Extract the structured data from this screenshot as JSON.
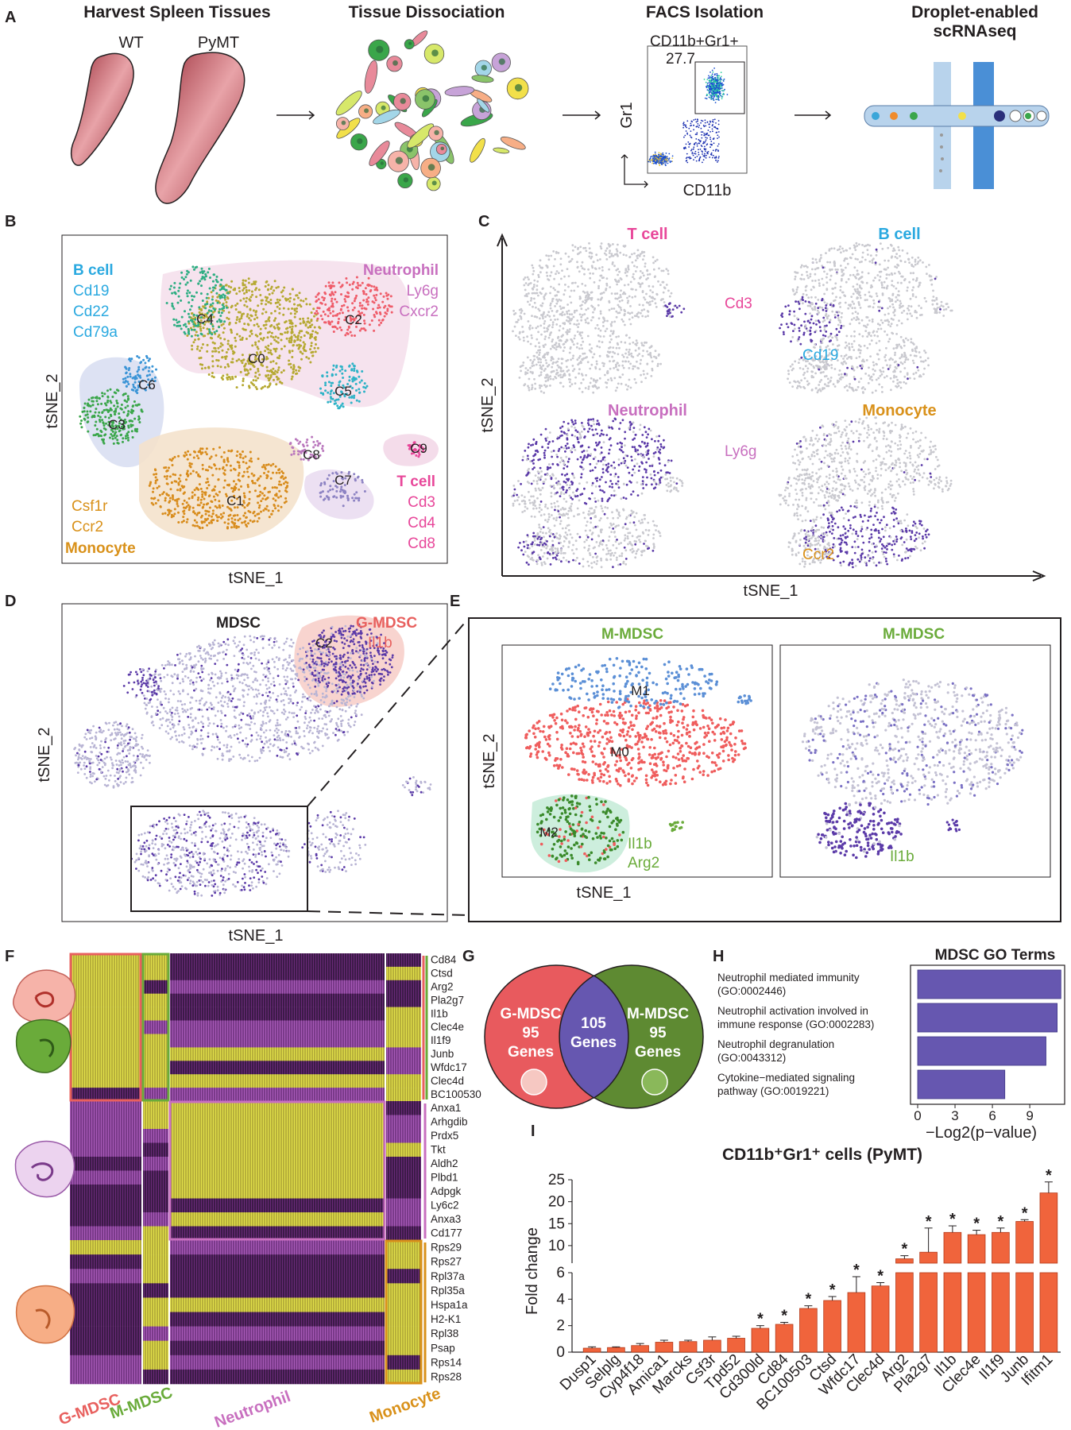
{
  "colors": {
    "bcell": "#2aa9e0",
    "neutrophil": "#c86fbf",
    "tcell": "#e8479a",
    "monocyte": "#d9911a",
    "gmdsc": "#e8605e",
    "mmdsc": "#6aab3a",
    "purple": "#5b3aa8",
    "grey": "#c9c9cf",
    "bar": "#f0643c",
    "gobar": "#6657b0",
    "c0": "#b6a932",
    "c1": "#d88c1c",
    "c2": "#ef5d6a",
    "c3": "#3aa64a",
    "c4": "#2fae83",
    "c5": "#2fb3c7",
    "c6": "#3a94d6",
    "c7": "#8d83c3",
    "c8": "#ba78bd",
    "c9": "#e8479a"
  },
  "panelA": {
    "label": "A",
    "step1_title": "Harvest Spleen Tissues",
    "wt": "WT",
    "pymt": "PyMT",
    "step2_title": "Tissue Dissociation",
    "step3_title": "FACS Isolation",
    "gate_name": "CD11b+Gr1+",
    "gate_pct": "27.7",
    "y_axis": "Gr1",
    "x_axis": "CD11b",
    "step4_title_line1": "Droplet-enabled",
    "step4_title_line2": "scRNAseq"
  },
  "panelB": {
    "label": "B",
    "x_axis": "tSNE_1",
    "y_axis": "tSNE_2",
    "clusters": [
      "C0",
      "C1",
      "C2",
      "C3",
      "C4",
      "C5",
      "C6",
      "C7",
      "C8",
      "C9"
    ],
    "bcell": {
      "name": "B cell",
      "genes": [
        "Cd19",
        "Cd22",
        "Cd79a"
      ]
    },
    "neutrophil": {
      "name": "Neutrophil",
      "genes": [
        "Ly6g",
        "Cxcr2"
      ]
    },
    "tcell": {
      "name": "T cell",
      "genes": [
        "Cd3",
        "Cd4",
        "Cd8"
      ]
    },
    "monocyte": {
      "name": "Monocyte",
      "genes": [
        "Csf1r",
        "Ccr2"
      ]
    }
  },
  "panelC": {
    "label": "C",
    "x_axis": "tSNE_1",
    "y_axis": "tSNE_2",
    "tcell": {
      "title": "T cell",
      "marker": "Cd3"
    },
    "bcell": {
      "title": "B cell",
      "marker": "Cd19"
    },
    "neutrophil": {
      "title": "Neutrophil",
      "marker": "Ly6g"
    },
    "monocyte": {
      "title": "Monocyte",
      "marker": "Ccr2"
    }
  },
  "panelD": {
    "label": "D",
    "title": "MDSC",
    "gmdsc": "G-MDSC",
    "gmdsc_gene": "Il1b",
    "cluster": "C2",
    "x_axis": "tSNE_1",
    "y_axis": "tSNE_2"
  },
  "panelE": {
    "label": "E",
    "title_left": "M-MDSC",
    "title_right": "M-MDSC",
    "clusters": [
      "M0",
      "M1",
      "M2"
    ],
    "genes": [
      "Il1b",
      "Arg2"
    ],
    "right_gene": "Il1b",
    "x_axis": "tSNE_1",
    "y_axis": "tSNE_2"
  },
  "panelF": {
    "label": "F",
    "group1_genes": [
      "Cd84",
      "Ctsd",
      "Arg2",
      "Pla2g7",
      "Il1b",
      "Clec4e",
      "Il1f9",
      "Junb",
      "Wfdc17",
      "Clec4d",
      "BC100530"
    ],
    "group2_genes": [
      "Anxa1",
      "Arhgdib",
      "Prdx5",
      "Tkt",
      "Aldh2",
      "Plbd1",
      "Adpgk",
      "Ly6c2",
      "Anxa3",
      "Cd177"
    ],
    "group3_genes": [
      "Rps29",
      "Rps27",
      "Rpl37a",
      "Rpl35a",
      "Hspa1a",
      "H2-K1",
      "Rpl38",
      "Psap",
      "Rps14",
      "Rps28"
    ],
    "columns": [
      "G-MDSC",
      "M-MDSC",
      "Neutrophil",
      "Monocyte"
    ]
  },
  "panelG": {
    "label": "G",
    "left": {
      "name": "G-MDSC",
      "count": "95",
      "unit": "Genes"
    },
    "overlap": {
      "count": "105",
      "unit": "Genes"
    },
    "right": {
      "name": "M-MDSC",
      "count": "95",
      "unit": "Genes"
    }
  },
  "panelH": {
    "label": "H"
  },
  "panelI": {
    "label": "I"
  },
  "chart_data": [
    {
      "type": "bar",
      "title": "MDSC GO Terms",
      "categories": [
        [
          "Neutrophil mediated immunity",
          "(GO:0002446)"
        ],
        [
          "Neutrophil activation involved in",
          "immune response (GO:0002283)"
        ],
        [
          "Neutrophil degranulation",
          "(GO:0043312)"
        ],
        [
          "Cytokine−mediated signaling",
          "pathway (GO:0019221)"
        ]
      ],
      "values": [
        11.5,
        11.2,
        10.3,
        7.0
      ],
      "xlabel": "−Log2(p−value)",
      "xlim": [
        0,
        11.8
      ],
      "ticks": [
        "0",
        "3",
        "6",
        "9"
      ]
    },
    {
      "type": "bar",
      "title": "CD11b⁺Gr1⁺ cells (PyMT)",
      "ylabel": "Fold change",
      "categories": [
        "Dusp1",
        "Selplg",
        "Cyp4f18",
        "Amica1",
        "Marcks",
        "Csf3r",
        "Tpd52",
        "Cd300ld",
        "Cd84",
        "BC100503",
        "Ctsd",
        "Wfdc17",
        "Clec4d",
        "Arg2",
        "Pla2g7",
        "Il1b",
        "Clec4e",
        "Il1f9",
        "Junb",
        "Ifitm1"
      ],
      "values": [
        0.3,
        0.35,
        0.5,
        0.75,
        0.8,
        0.9,
        1.05,
        1.8,
        2.1,
        3.3,
        3.9,
        4.5,
        5.0,
        7.0,
        8.5,
        13.0,
        12.5,
        13.0,
        15.5,
        22.0
      ],
      "errors": [
        0.1,
        0.05,
        0.15,
        0.15,
        0.1,
        0.25,
        0.15,
        0.2,
        0.15,
        0.2,
        0.3,
        1.2,
        0.25,
        0.7,
        5.5,
        1.5,
        1.0,
        1.0,
        0.4,
        2.5
      ],
      "significant": [
        false,
        false,
        false,
        false,
        false,
        false,
        false,
        true,
        true,
        true,
        true,
        true,
        true,
        true,
        true,
        true,
        true,
        true,
        true,
        true
      ],
      "star": "*",
      "ylim_lower": [
        0,
        6
      ],
      "ylim_upper": [
        6,
        25
      ],
      "ticks_lower": [
        "0",
        "2",
        "4",
        "6"
      ],
      "ticks_upper": [
        "10",
        "15",
        "20",
        "25"
      ]
    }
  ]
}
